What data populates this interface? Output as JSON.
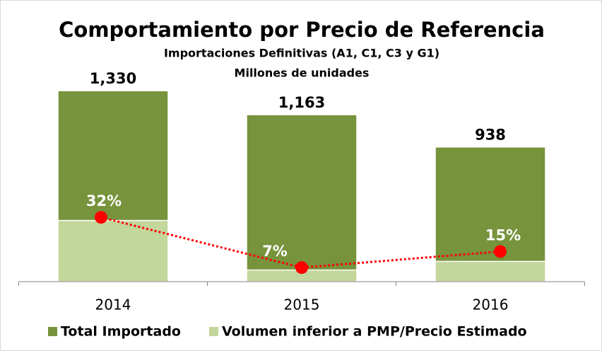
{
  "chart_data": {
    "type": "bar",
    "title": "Comportamiento por Precio de Referencia",
    "subtitle": "Importaciones Definitivas (A1, C1, C3 y G1)",
    "y_label": "Millones de unidades",
    "categories": [
      "2014",
      "2015",
      "2016"
    ],
    "series": [
      {
        "name": "Total Importado",
        "color": "#77933c",
        "values": [
          1330,
          1163,
          938
        ],
        "value_labels": [
          "1,330",
          "1,163",
          "938"
        ]
      },
      {
        "name": "Volumen inferior a PMP/Precio Estimado",
        "color": "#c3d69b",
        "values": [
          426,
          81,
          141
        ]
      },
      {
        "type": "line",
        "axis": "y2",
        "color": "#ff0000",
        "values": [
          32,
          7,
          15
        ],
        "value_labels": [
          "32%",
          "7%",
          "15%"
        ]
      }
    ],
    "ylim": [
      0,
      1400
    ],
    "y2lim": [
      0,
      100
    ],
    "legend": "bottom"
  }
}
